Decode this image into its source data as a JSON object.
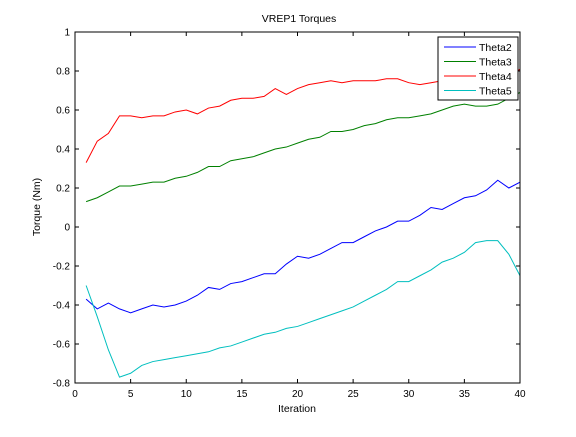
{
  "chart_data": {
    "type": "line",
    "title": "VREP1 Torques",
    "xlabel": "Iteration",
    "ylabel": "Torque (Nm)",
    "xlim": [
      0,
      40
    ],
    "ylim": [
      -0.8,
      1
    ],
    "xticks": [
      0,
      5,
      10,
      15,
      20,
      25,
      30,
      35,
      40
    ],
    "yticks": [
      -0.8,
      -0.6,
      -0.4,
      -0.2,
      0,
      0.2,
      0.4,
      0.6,
      0.8,
      1
    ],
    "xtick_labels": [
      "0",
      "5",
      "10",
      "15",
      "20",
      "25",
      "30",
      "35",
      "40"
    ],
    "ytick_labels": [
      "-0.8",
      "-0.6",
      "-0.4",
      "-0.2",
      "0",
      "0.2",
      "0.4",
      "0.6",
      "0.8",
      "1"
    ],
    "grid": false,
    "legend_position": "top-right",
    "x": [
      1,
      2,
      3,
      4,
      5,
      6,
      7,
      8,
      9,
      10,
      11,
      12,
      13,
      14,
      15,
      16,
      17,
      18,
      19,
      20,
      21,
      22,
      23,
      24,
      25,
      26,
      27,
      28,
      29,
      30,
      31,
      32,
      33,
      34,
      35,
      36,
      37,
      38,
      39,
      40
    ],
    "series": [
      {
        "name": "Theta2",
        "color": "#0000ff",
        "values": [
          -0.37,
          -0.42,
          -0.39,
          -0.42,
          -0.44,
          -0.42,
          -0.4,
          -0.41,
          -0.4,
          -0.38,
          -0.35,
          -0.31,
          -0.32,
          -0.29,
          -0.28,
          -0.26,
          -0.24,
          -0.24,
          -0.19,
          -0.15,
          -0.16,
          -0.14,
          -0.11,
          -0.08,
          -0.08,
          -0.05,
          -0.02,
          0.0,
          0.03,
          0.03,
          0.06,
          0.1,
          0.09,
          0.12,
          0.15,
          0.16,
          0.19,
          0.24,
          0.2,
          0.23
        ]
      },
      {
        "name": "Theta3",
        "color": "#008000",
        "values": [
          0.13,
          0.15,
          0.18,
          0.21,
          0.21,
          0.22,
          0.23,
          0.23,
          0.25,
          0.26,
          0.28,
          0.31,
          0.31,
          0.34,
          0.35,
          0.36,
          0.38,
          0.4,
          0.41,
          0.43,
          0.45,
          0.46,
          0.49,
          0.49,
          0.5,
          0.52,
          0.53,
          0.55,
          0.56,
          0.56,
          0.57,
          0.58,
          0.6,
          0.62,
          0.63,
          0.62,
          0.62,
          0.63,
          0.66,
          0.69
        ]
      },
      {
        "name": "Theta4",
        "color": "#ff0000",
        "values": [
          0.33,
          0.44,
          0.48,
          0.57,
          0.57,
          0.56,
          0.57,
          0.57,
          0.59,
          0.6,
          0.58,
          0.61,
          0.62,
          0.65,
          0.66,
          0.66,
          0.67,
          0.71,
          0.68,
          0.71,
          0.73,
          0.74,
          0.75,
          0.74,
          0.75,
          0.75,
          0.75,
          0.76,
          0.76,
          0.74,
          0.73,
          0.74,
          0.75,
          0.75,
          0.75,
          0.75,
          0.74,
          0.75,
          0.76,
          0.81
        ]
      },
      {
        "name": "Theta5",
        "color": "#00bfbf",
        "values": [
          -0.3,
          -0.46,
          -0.63,
          -0.77,
          -0.75,
          -0.71,
          -0.69,
          -0.68,
          -0.67,
          -0.66,
          -0.65,
          -0.64,
          -0.62,
          -0.61,
          -0.59,
          -0.57,
          -0.55,
          -0.54,
          -0.52,
          -0.51,
          -0.49,
          -0.47,
          -0.45,
          -0.43,
          -0.41,
          -0.38,
          -0.35,
          -0.32,
          -0.28,
          -0.28,
          -0.25,
          -0.22,
          -0.18,
          -0.16,
          -0.13,
          -0.08,
          -0.07,
          -0.07,
          -0.14,
          -0.25
        ]
      }
    ]
  }
}
